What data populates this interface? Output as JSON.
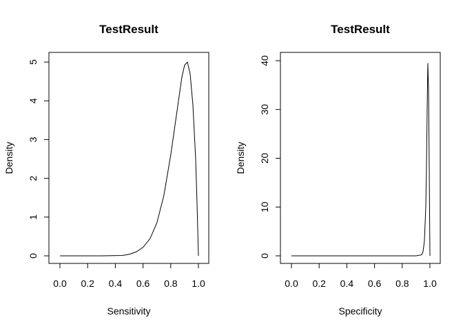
{
  "chart_data": [
    {
      "type": "line",
      "title": "TestResult",
      "xlabel": "Sensitivity",
      "ylabel": "Density",
      "xlim": [
        0.0,
        1.0
      ],
      "ylim": [
        0,
        5
      ],
      "xticks": [
        "0.0",
        "0.2",
        "0.4",
        "0.6",
        "0.8",
        "1.0"
      ],
      "yticks": [
        "0",
        "1",
        "2",
        "3",
        "4",
        "5"
      ],
      "grid": false,
      "series": [
        {
          "x": [
            0.0,
            0.3,
            0.45,
            0.5,
            0.55,
            0.6,
            0.65,
            0.7,
            0.75,
            0.8,
            0.85,
            0.88,
            0.9,
            0.92,
            0.94,
            0.96,
            0.98,
            0.99,
            1.0
          ],
          "y": [
            0.0,
            0.0,
            0.01,
            0.04,
            0.1,
            0.22,
            0.44,
            0.85,
            1.55,
            2.6,
            3.85,
            4.6,
            4.92,
            5.0,
            4.7,
            3.9,
            2.5,
            1.35,
            0.0
          ]
        }
      ]
    },
    {
      "type": "line",
      "title": "TestResult",
      "xlabel": "Specificity",
      "ylabel": "Density",
      "xlim": [
        0.0,
        1.0
      ],
      "ylim": [
        0,
        40
      ],
      "xticks": [
        "0.0",
        "0.2",
        "0.4",
        "0.6",
        "0.8",
        "1.0"
      ],
      "yticks": [
        "0",
        "10",
        "20",
        "30",
        "40"
      ],
      "grid": false,
      "series": [
        {
          "x": [
            0.0,
            0.9,
            0.94,
            0.95,
            0.96,
            0.97,
            0.975,
            0.98,
            0.985,
            0.99,
            0.995,
            1.0
          ],
          "y": [
            0.0,
            0.0,
            0.2,
            0.8,
            3.0,
            10.0,
            18.0,
            30.0,
            39.5,
            34.0,
            18.0,
            0.0
          ]
        }
      ]
    }
  ]
}
